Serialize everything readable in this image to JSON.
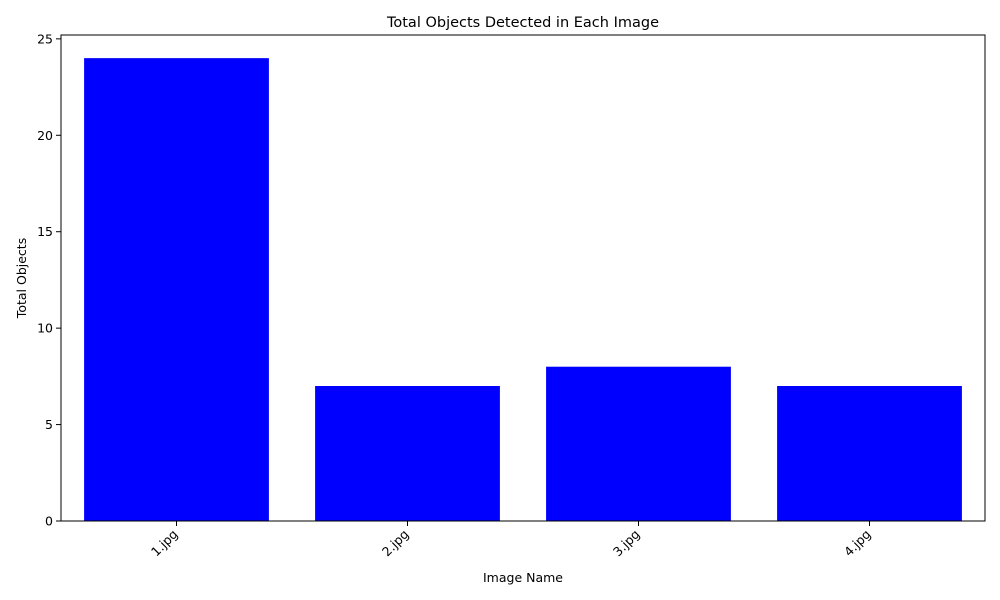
{
  "chart_data": {
    "type": "bar",
    "title": "Total Objects Detected in Each Image",
    "xlabel": "Image Name",
    "ylabel": "Total Objects",
    "categories": [
      "1.jpg",
      "2.jpg",
      "3.jpg",
      "4.jpg"
    ],
    "values": [
      24,
      7,
      8,
      7
    ],
    "ylim": [
      0,
      25.2
    ],
    "yticks": [
      0,
      5,
      10,
      15,
      20,
      25
    ],
    "bar_color": "#0000ff",
    "grid": false,
    "legend": "none",
    "xtick_rotation": "45deg"
  }
}
